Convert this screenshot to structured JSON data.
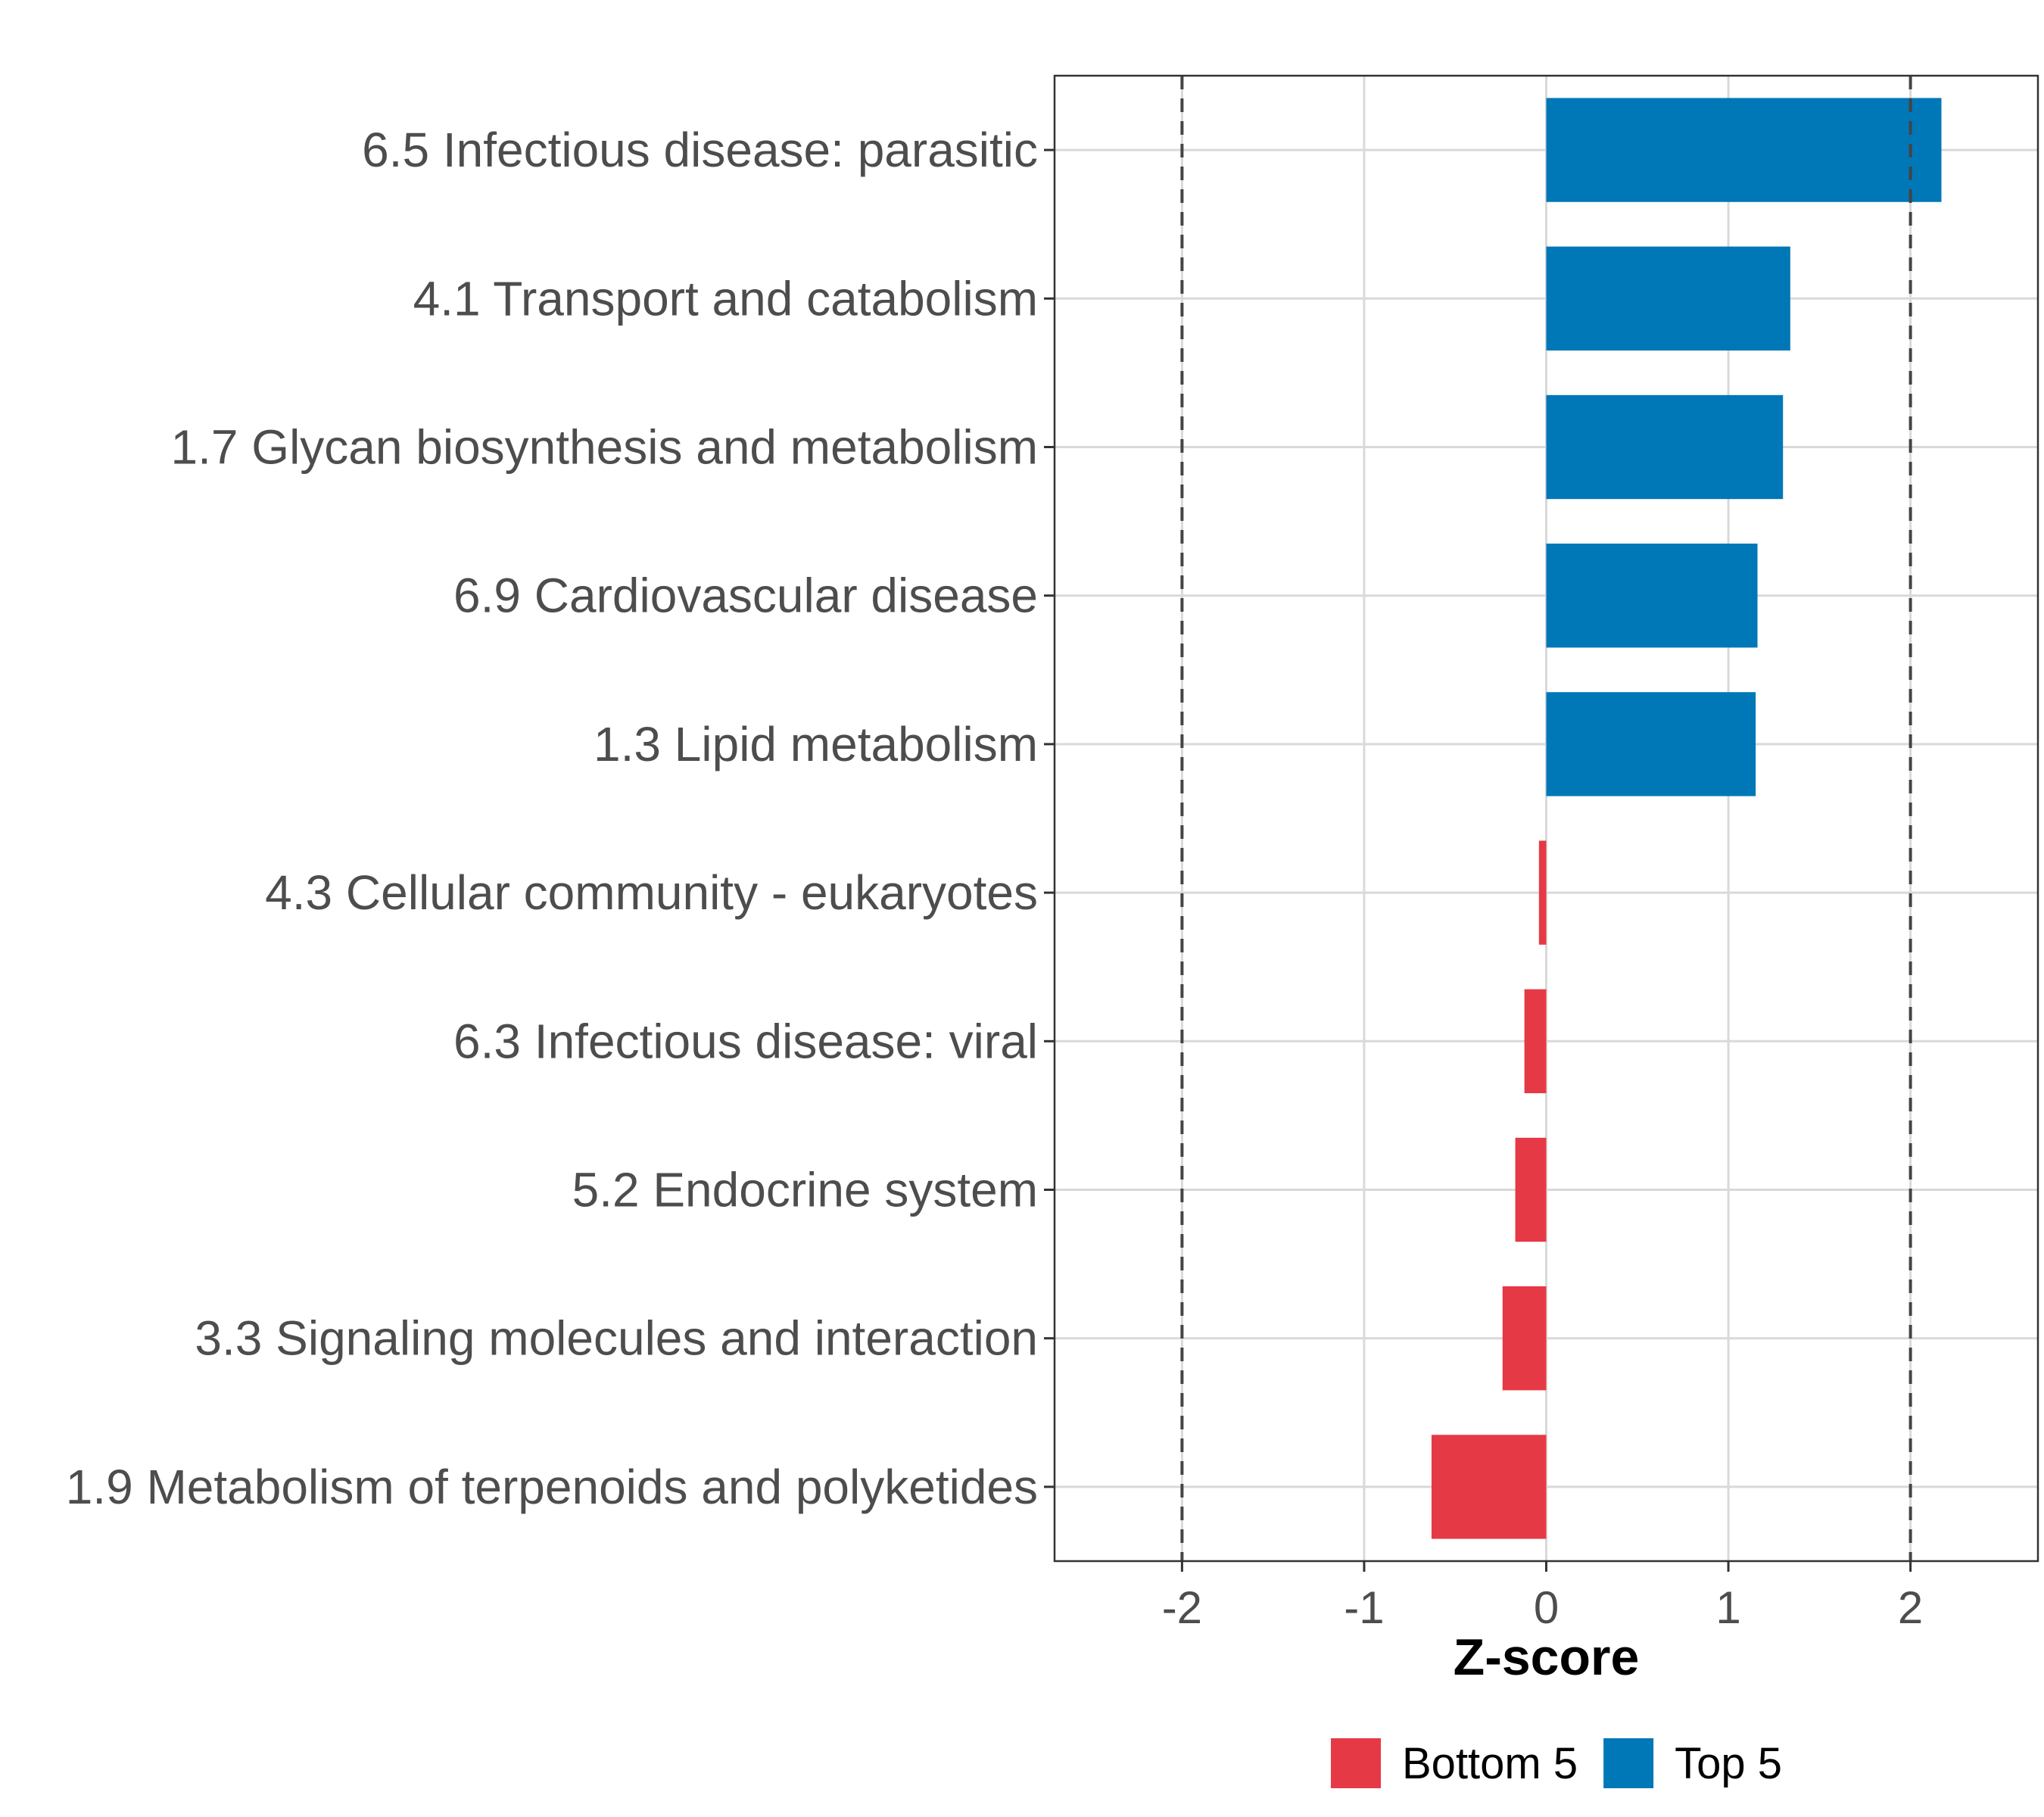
{
  "chart_data": {
    "type": "bar",
    "orientation": "horizontal",
    "categories": [
      "6.5 Infectious disease: parasitic",
      "4.1 Transport and catabolism",
      "1.7 Glycan biosynthesis and metabolism",
      "6.9 Cardiovascular disease",
      "1.3 Lipid metabolism",
      "4.3 Cellular community - eukaryotes",
      "6.3 Infectious disease: viral",
      "5.2 Endocrine system",
      "3.3 Signaling molecules and interaction",
      "1.9 Metabolism of terpenoids and polyketides"
    ],
    "values": [
      2.17,
      1.34,
      1.3,
      1.16,
      1.15,
      -0.04,
      -0.12,
      -0.17,
      -0.24,
      -0.63
    ],
    "groups": [
      "Top 5",
      "Top 5",
      "Top 5",
      "Top 5",
      "Top 5",
      "Bottom 5",
      "Bottom 5",
      "Bottom 5",
      "Bottom 5",
      "Bottom 5"
    ],
    "xlabel": "Z-score",
    "ylabel": "",
    "xlim": [
      -2.7,
      2.7
    ],
    "xticks": [
      -2,
      -1,
      0,
      1,
      2
    ],
    "xtick_labels": [
      "-2",
      "-1",
      "0",
      "1",
      "2"
    ],
    "reference_lines": [
      -2,
      2
    ],
    "grid": true,
    "legend": {
      "position": "bottom",
      "entries": [
        {
          "label": "Bottom 5",
          "color": "#e63946"
        },
        {
          "label": "Top 5",
          "color": "#0077b6"
        }
      ]
    }
  }
}
